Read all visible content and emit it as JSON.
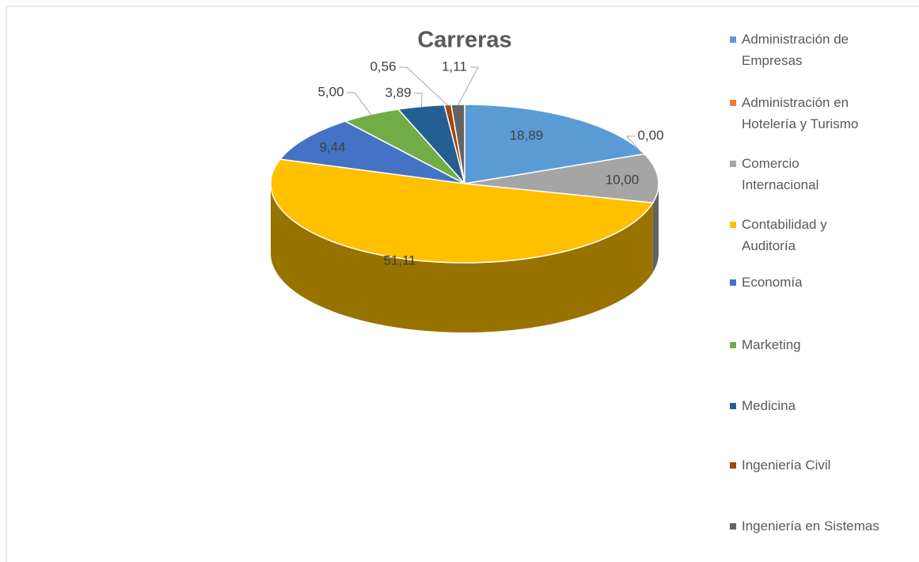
{
  "chart_data": {
    "type": "pie",
    "title": "Carreras",
    "categories": [
      "Administración de Empresas",
      "Administración en Hotelería y Turismo",
      "Comercio Internacional",
      "Contabilidad y Auditoría",
      "Economía",
      "Marketing",
      "Medicina",
      "Ingeniería Civil",
      "Ingeniería en Sistemas"
    ],
    "values": [
      18.89,
      0,
      10,
      51.11,
      9.44,
      5,
      3.89,
      0.56,
      1.11
    ],
    "value_labels": [
      "18,89",
      "0,00",
      "10,00",
      "51,11",
      "9,44",
      "5,00",
      "3,89",
      "0,56",
      "1,11"
    ],
    "colors": [
      "#5b9bd5",
      "#ed7d31",
      "#a5a5a5",
      "#ffc000",
      "#4472c4",
      "#70ad47",
      "#255e91",
      "#9e480e",
      "#636363"
    ],
    "legend": "right"
  }
}
